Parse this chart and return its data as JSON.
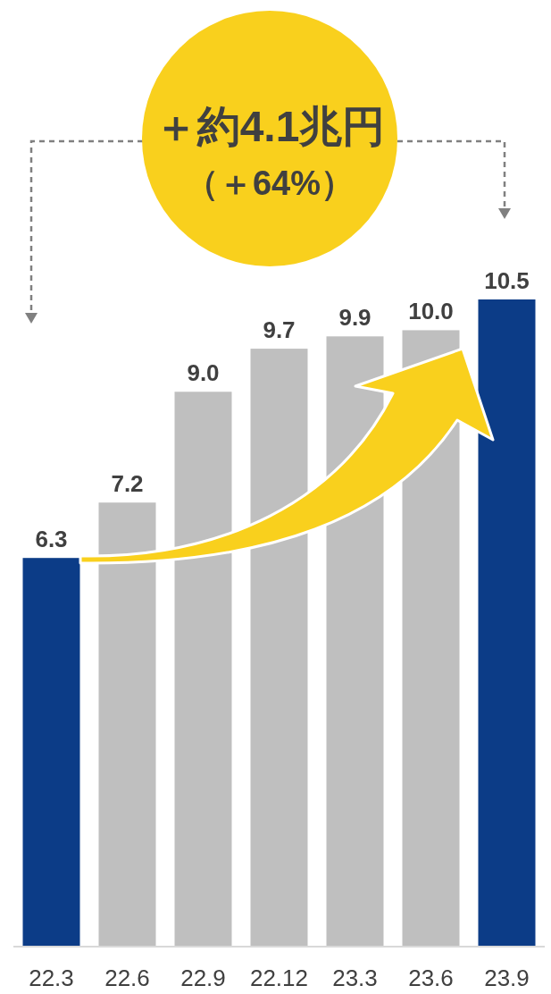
{
  "chart_data": {
    "type": "bar",
    "categories": [
      "22.3",
      "22.6",
      "22.9",
      "22.12",
      "23.3",
      "23.6",
      "23.9"
    ],
    "values": [
      6.3,
      7.2,
      9.0,
      9.7,
      9.9,
      10.0,
      10.5
    ],
    "colors": [
      "#0c3c87",
      "#bfbfbf",
      "#bfbfbf",
      "#bfbfbf",
      "#bfbfbf",
      "#bfbfbf",
      "#0c3c87"
    ],
    "value_labels": [
      "6.3",
      "7.2",
      "9.0",
      "9.7",
      "9.9",
      "10.0",
      "10.5"
    ],
    "annotations": [
      "＋約4.1兆円",
      "（＋64%）"
    ]
  }
}
